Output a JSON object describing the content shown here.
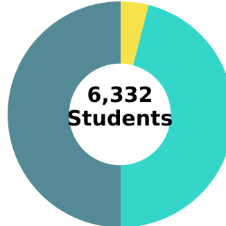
{
  "chart_data": {
    "type": "pie",
    "style": "donut",
    "center_value": "6,332",
    "center_unit": "Students",
    "slices": [
      {
        "value": 4,
        "color": "#F6E24B"
      },
      {
        "value": 46,
        "color": "#33D6C8"
      },
      {
        "value": 50,
        "color": "#548A95"
      }
    ],
    "start_angle_deg": 0,
    "direction": "clockwise",
    "hole_ratio": 0.45
  }
}
